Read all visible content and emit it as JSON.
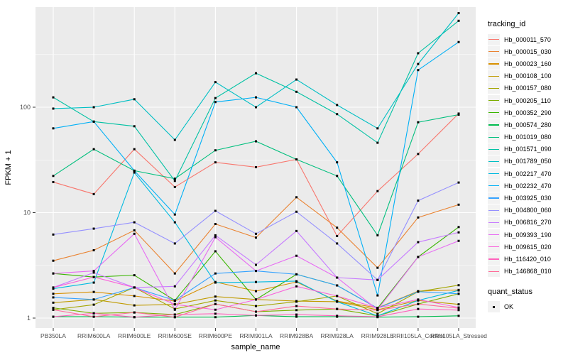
{
  "figure": {
    "background": "#FFFFFF",
    "panel_background": "#EBEBEB",
    "grid_color": "#FFFFFF",
    "tick_color": "#333333",
    "tick_label_color": "#4D4D4D",
    "axis_title_color": "#000000",
    "legend_key_background": "#F2F2F2",
    "marker_color": "#000000"
  },
  "legend": {
    "tracking_title": "tracking_id",
    "quant_title": "quant_status",
    "quant_ok_label": "OK"
  },
  "chart_data": {
    "type": "line",
    "title": "",
    "xlabel": "sample_name",
    "ylabel": "FPKM + 1",
    "yscale": "log10",
    "ylim": [
      0.8,
      890
    ],
    "y_ticks": [
      1,
      10,
      100
    ],
    "y_minor_ticks": [
      3.162,
      31.62,
      316.2
    ],
    "grid": true,
    "legend_position": "right",
    "marker": {
      "shape": "filled-square",
      "color": "#000000",
      "legend_label": "OK"
    },
    "categories": [
      "PB350LA",
      "RRIM600LA",
      "RRIM600LE",
      "RRIM600SE",
      "RRIM600PE",
      "RRIM901LA",
      "RRIM928BA",
      "RRIM928LA",
      "RRIM928LE",
      "RRII105LA_Control",
      "RRII105LA_Stressed"
    ],
    "series": [
      {
        "name": "Hb_000011_570",
        "color": "#F8766D",
        "values": [
          19.5,
          15,
          40,
          17.5,
          30,
          27,
          32,
          6.0,
          16,
          36,
          87
        ]
      },
      {
        "name": "Hb_000015_030",
        "color": "#EA8331",
        "values": [
          3.5,
          4.4,
          6.8,
          2.65,
          7.8,
          5.8,
          14,
          7.2,
          3.0,
          9.0,
          11.9
        ]
      },
      {
        "name": "Hb_000023_160",
        "color": "#D89000",
        "values": [
          1.7,
          1.77,
          1.62,
          1.45,
          2.2,
          1.8,
          2.2,
          1.45,
          1.25,
          1.8,
          1.85
        ]
      },
      {
        "name": "Hb_000108_100",
        "color": "#C09B00",
        "values": [
          1.4,
          1.5,
          1.32,
          1.35,
          1.6,
          1.5,
          1.45,
          1.43,
          1.2,
          1.47,
          1.35
        ]
      },
      {
        "name": "Hb_000157_080",
        "color": "#A3A500",
        "values": [
          1.2,
          1.34,
          1.95,
          1.22,
          1.47,
          1.3,
          1.43,
          1.62,
          1.1,
          1.78,
          2.05
        ]
      },
      {
        "name": "Hb_000205_110",
        "color": "#7CAE00",
        "values": [
          1.25,
          1.11,
          1.13,
          1.08,
          1.36,
          1.15,
          1.19,
          1.22,
          1.05,
          1.36,
          1.7
        ]
      },
      {
        "name": "Hb_000352_290",
        "color": "#39B600",
        "values": [
          2.65,
          2.45,
          2.55,
          1.47,
          4.3,
          1.5,
          2.6,
          2.04,
          1.24,
          3.8,
          7.3
        ]
      },
      {
        "name": "Hb_000574_280",
        "color": "#00BB4E",
        "values": [
          1.03,
          1.03,
          1.02,
          1.02,
          1.02,
          1.06,
          1.03,
          1.03,
          1.02,
          1.03,
          1.05
        ]
      },
      {
        "name": "Hb_001019_080",
        "color": "#00BF7D",
        "values": [
          22.3,
          40,
          25,
          21,
          39,
          47.5,
          32,
          22.3,
          6.1,
          72,
          85
        ]
      },
      {
        "name": "Hb_001571_090",
        "color": "#00C1A3",
        "values": [
          124,
          73,
          66,
          20,
          122,
          210,
          140,
          86,
          46,
          325,
          660
        ]
      },
      {
        "name": "Hb_001789_050",
        "color": "#00BFC4",
        "values": [
          97,
          100,
          119,
          49,
          173,
          100,
          183,
          105,
          63,
          257,
          780
        ]
      },
      {
        "name": "Hb_002217_470",
        "color": "#00BAE0",
        "values": [
          1.9,
          2.17,
          24,
          8.1,
          2.17,
          2.2,
          2.24,
          1.43,
          1.05,
          1.47,
          1.83
        ]
      },
      {
        "name": "Hb_002232_470",
        "color": "#00B0F6",
        "values": [
          63,
          73,
          25,
          9.6,
          112,
          124,
          100,
          30,
          1.64,
          225,
          415
        ]
      },
      {
        "name": "Hb_003925_030",
        "color": "#35A2FF",
        "values": [
          1.57,
          1.5,
          1.95,
          1.47,
          2.65,
          2.8,
          2.6,
          2.04,
          1.24,
          1.78,
          1.7
        ]
      },
      {
        "name": "Hb_004800_060",
        "color": "#9590FF",
        "values": [
          6.2,
          7.05,
          8.1,
          5.1,
          10.4,
          6.3,
          10.2,
          5.1,
          2.3,
          13,
          19.3
        ]
      },
      {
        "name": "Hb_006816_270",
        "color": "#C77CFF",
        "values": [
          1.95,
          2.7,
          1.95,
          2.0,
          6.1,
          3.2,
          6.7,
          2.42,
          2.3,
          5.25,
          6.5
        ]
      },
      {
        "name": "Hb_009393_190",
        "color": "#E76BF3",
        "values": [
          2.65,
          2.8,
          6.3,
          1.2,
          5.85,
          2.8,
          3.9,
          2.42,
          1.2,
          3.8,
          5.4
        ]
      },
      {
        "name": "Hb_009615_020",
        "color": "#FA62DB",
        "values": [
          1.95,
          2.45,
          1.95,
          1.35,
          1.2,
          1.5,
          2.0,
          1.62,
          1.25,
          1.5,
          1.26
        ]
      },
      {
        "name": "Hb_116420_010",
        "color": "#FF62BC",
        "values": [
          1.03,
          1.11,
          1.02,
          1.08,
          1.1,
          1.06,
          1.08,
          1.05,
          1.03,
          1.22,
          1.19
        ]
      },
      {
        "name": "Hb_146868_010",
        "color": "#FF6A98",
        "values": [
          1.2,
          1.03,
          1.13,
          1.02,
          1.36,
          1.15,
          1.3,
          1.22,
          1.19,
          1.36,
          1.24
        ]
      }
    ]
  }
}
